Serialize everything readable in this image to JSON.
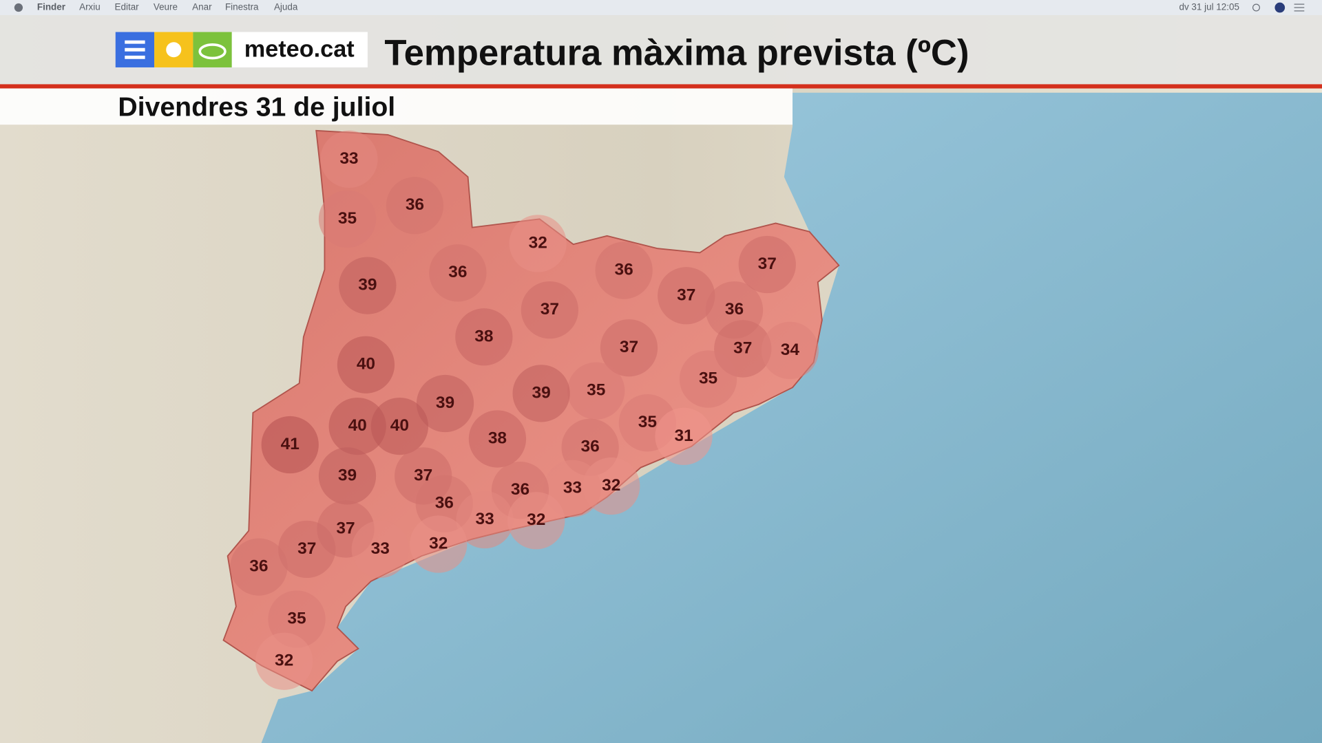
{
  "menu_bar": {
    "app": "Finder",
    "items": [
      "Arxiu",
      "Editar",
      "Veure",
      "Anar",
      "Finestra",
      "Ajuda"
    ],
    "clock": "dv 31 jul 12:05"
  },
  "header": {
    "logo": "meteo.cat",
    "title": "Temperatura màxima prevista (ºC)",
    "date": "Divendres 31 de juliol"
  },
  "map": {
    "temperatures": [
      33,
      36,
      35,
      32,
      36,
      36,
      37,
      39,
      37,
      36,
      37,
      38,
      37,
      37,
      34,
      40,
      35,
      35,
      39,
      39,
      35,
      40,
      40,
      31,
      38,
      41,
      36,
      39,
      37,
      32,
      33,
      36,
      36,
      33,
      32,
      37,
      32,
      37,
      33,
      36,
      35,
      32
    ]
  }
}
